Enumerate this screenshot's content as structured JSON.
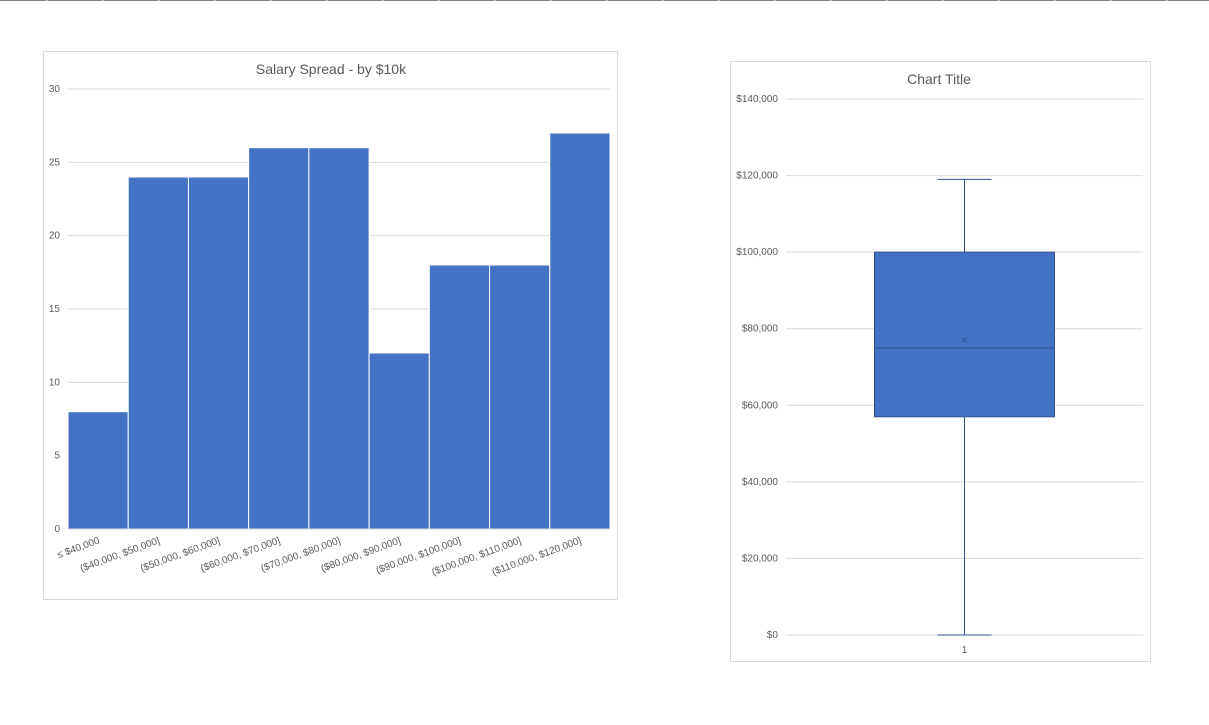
{
  "sheet": {
    "column_divider_count": 22
  },
  "colors": {
    "bar_fill": "#4472c4",
    "bar_stroke": "#ffffff",
    "box_fill": "#4472c4",
    "box_stroke": "#2f528f",
    "whisker": "#2f528f",
    "gridline": "#d9d9d9",
    "text": "#595959",
    "sheet_line": "#7f7f7f"
  },
  "chart_data": [
    {
      "type": "bar",
      "title": "Salary Spread - by $10k",
      "categories": [
        "≤ $40,000",
        "($40,000, $50,000]",
        "($50,000, $60,000]",
        "($60,000, $70,000]",
        "($70,000, $80,000]",
        "($80,000, $90,000]",
        "($90,000, $100,000]",
        "($100,000, $110,000]",
        "($110,000, $120,000]"
      ],
      "values": [
        8,
        24,
        24,
        26,
        26,
        12,
        18,
        18,
        27
      ],
      "ylim": [
        0,
        30
      ],
      "yticks": [
        0,
        5,
        10,
        15,
        20,
        25,
        30
      ],
      "grid": true,
      "legend": "none"
    },
    {
      "type": "box",
      "title": "Chart Title",
      "categories": [
        "1"
      ],
      "stats": {
        "min": 0,
        "q1": 57000,
        "median": 75000,
        "mean": 77000,
        "q3": 100000,
        "max": 119000
      },
      "ylim": [
        0,
        140000
      ],
      "yticks": [
        "$0",
        "$20,000",
        "$40,000",
        "$60,000",
        "$80,000",
        "$100,000",
        "$120,000",
        "$140,000"
      ],
      "ytick_values": [
        0,
        20000,
        40000,
        60000,
        80000,
        100000,
        120000,
        140000
      ],
      "grid": true,
      "legend": "none"
    }
  ]
}
